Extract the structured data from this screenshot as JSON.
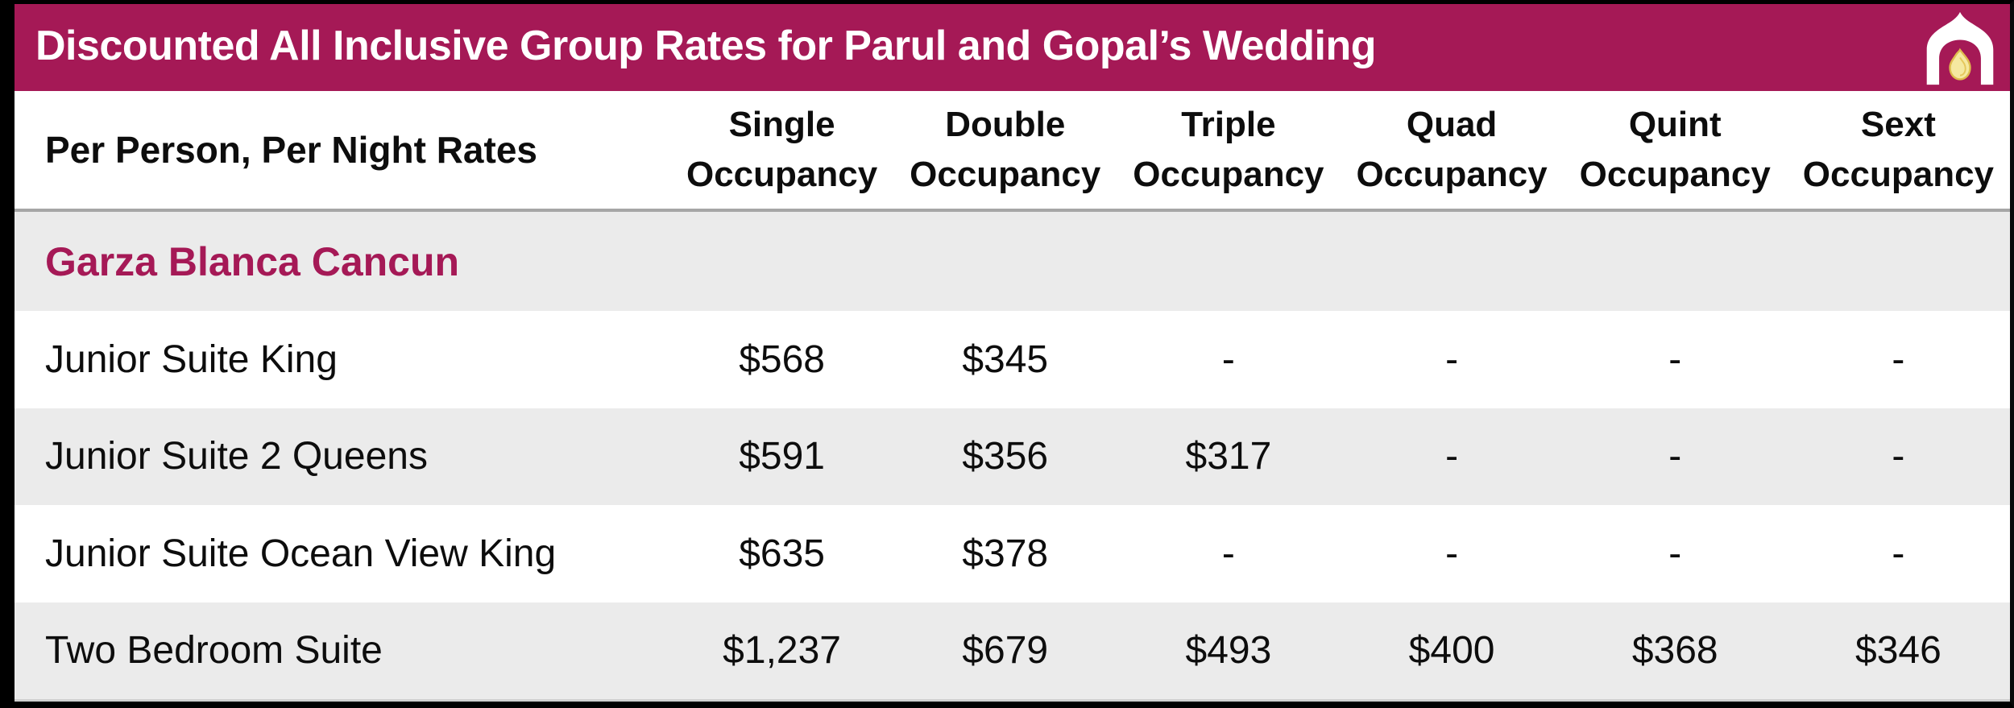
{
  "header": {
    "title": "Discounted All Inclusive Group Rates for Parul and Gopal’s Wedding",
    "icon": "mandap-flame-icon"
  },
  "table": {
    "row_header_label": "Per Person, Per Night Rates",
    "columns": [
      "Single\nOccupancy",
      "Double\nOccupancy",
      "Triple\nOccupancy",
      "Quad\nOccupancy",
      "Quint\nOccupancy",
      "Sext\nOccupancy"
    ],
    "section": "Garza Blanca Cancun",
    "rows": [
      {
        "label": "Junior Suite King",
        "values": [
          "$568",
          "$345",
          "-",
          "-",
          "-",
          "-"
        ]
      },
      {
        "label": "Junior Suite 2 Queens",
        "values": [
          "$591",
          "$356",
          "$317",
          "-",
          "-",
          "-"
        ]
      },
      {
        "label": "Junior Suite Ocean View King",
        "values": [
          "$635",
          "$378",
          "-",
          "-",
          "-",
          "-"
        ]
      },
      {
        "label": "Two Bedroom Suite",
        "values": [
          "$1,237",
          "$679",
          "$493",
          "$400",
          "$368",
          "$346"
        ]
      }
    ]
  },
  "colors": {
    "accent_magenta": "#A51956",
    "row_alt_gray": "#EBEBEB",
    "header_separator_gray": "#A6A6A6",
    "frame_black": "#000000",
    "flame_yellow": "#F5E9A0",
    "flame_gold": "#DFBC4E",
    "title_text": "#FFFFFF"
  }
}
